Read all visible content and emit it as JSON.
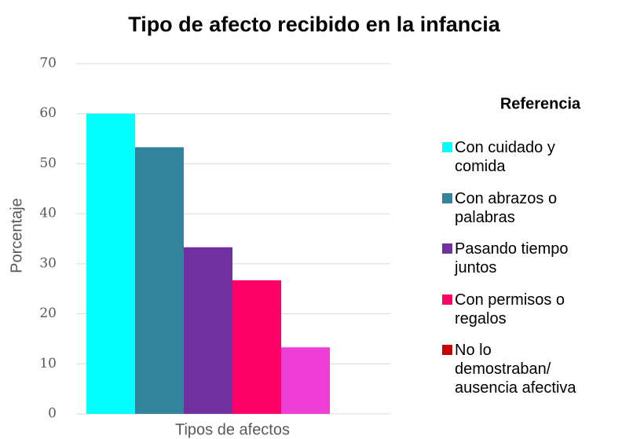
{
  "chart_data": {
    "type": "bar",
    "title": "Tipo de afecto recibido en la infancia",
    "x_label": "Tipos de afectos",
    "y_label": "Porcentaje",
    "legend_title": "Referencia",
    "legend_position": "right",
    "categories": [
      "Tipos de afectos"
    ],
    "series": [
      {
        "name": "Con cuidado y comida",
        "color": "#00ffff",
        "legend_color": "#00ffff",
        "values": [
          60
        ]
      },
      {
        "name": "Con abrazos o palabras",
        "color": "#31849b",
        "legend_color": "#31849b",
        "values": [
          53.3
        ]
      },
      {
        "name": "Pasando tiempo juntos",
        "color": "#7030a0",
        "legend_color": "#7030a0",
        "values": [
          33.3
        ]
      },
      {
        "name": "Con permisos o regalos",
        "color": "#ff0066",
        "legend_color": "#ff0066",
        "values": [
          26.7
        ]
      },
      {
        "name": "No lo demostraban/ ausencia afectiva",
        "color": "#ee3ed6",
        "legend_color": "#cc0000",
        "values": [
          13.3
        ]
      }
    ],
    "ylim": [
      0,
      70
    ],
    "yticks": [
      0,
      10,
      20,
      30,
      40,
      50,
      60,
      70
    ],
    "grid": true
  }
}
